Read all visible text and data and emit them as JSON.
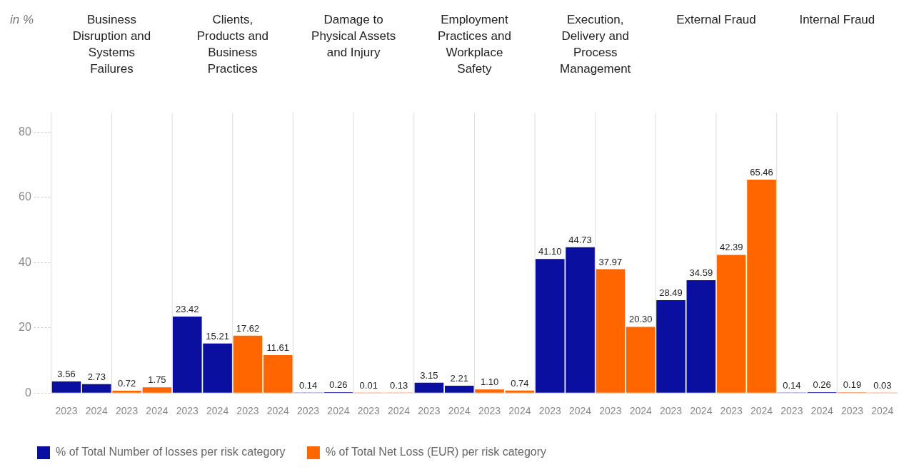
{
  "chart_data": {
    "type": "bar",
    "categories": [
      "2023",
      "2024",
      "2023",
      "2024",
      "2023",
      "2024",
      "2023",
      "2024",
      "2023",
      "2024",
      "2023",
      "2024",
      "2023",
      "2024",
      "2023",
      "2024",
      "2023",
      "2024",
      "2023",
      "2024",
      "2023",
      "2024",
      "2023",
      "2024",
      "2023",
      "2024",
      "2023",
      "2024"
    ],
    "series": [
      {
        "name": "% of Total Number of losses per risk category",
        "color": "#0a0fa0",
        "values": [
          3.56,
          2.73,
          null,
          null,
          23.42,
          15.21,
          null,
          null,
          0.14,
          0.26,
          null,
          null,
          3.15,
          2.21,
          null,
          null,
          41.1,
          44.73,
          null,
          null,
          28.49,
          34.59,
          null,
          null,
          0.14,
          0.26,
          null,
          null
        ],
        "value_labels": [
          "3.56",
          "2.73",
          null,
          null,
          "23.42",
          "15.21",
          null,
          null,
          "0.14",
          "0.26",
          null,
          null,
          "3.15",
          "2.21",
          null,
          null,
          "41.10",
          "44.73",
          null,
          null,
          "28.49",
          "34.59",
          null,
          null,
          "0.14",
          "0.26",
          null,
          null
        ]
      },
      {
        "name": "% of Total Net Loss (EUR) per risk category",
        "color": "#ff6600",
        "values": [
          null,
          null,
          0.72,
          1.75,
          null,
          null,
          17.62,
          11.61,
          null,
          null,
          0.01,
          0.13,
          null,
          null,
          1.1,
          0.74,
          null,
          null,
          37.97,
          20.3,
          null,
          null,
          42.39,
          65.46,
          null,
          null,
          0.19,
          0.03
        ],
        "value_labels": [
          null,
          null,
          "0.72",
          "1.75",
          null,
          null,
          "17.62",
          "11.61",
          null,
          null,
          "0.01",
          "0.13",
          null,
          null,
          "1.10",
          "0.74",
          null,
          null,
          "37.97",
          "20.30",
          null,
          null,
          "42.39",
          "65.46",
          null,
          null,
          "0.19",
          "0.03"
        ]
      }
    ],
    "annotations": [
      "Business Disruption and Systems Failures",
      "Clients, Products and Business Practices",
      "Damage to Physical Assets and Injury",
      "Employment Practices and Workplace Safety",
      "Execution, Delivery and Process Management",
      "External Fraud",
      "Internal Fraud",
      "in %"
    ],
    "ylim": [
      0,
      86
    ],
    "yticks": [
      0,
      20,
      40,
      60,
      80
    ],
    "legend": "bottom left"
  }
}
